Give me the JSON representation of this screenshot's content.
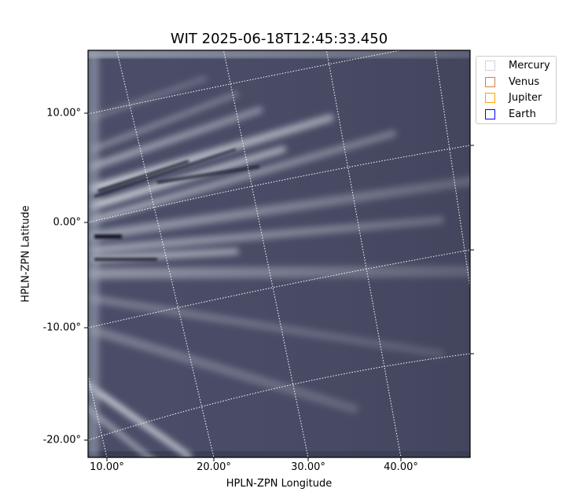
{
  "chart_data": {
    "type": "heatmap",
    "title": "WIT 2025-06-18T12:45:33.450",
    "xlabel": "HPLN-ZPN Longitude",
    "ylabel": "HPLN-ZPN Latitude",
    "xticks": [
      "10.00°",
      "20.00°",
      "30.00°",
      "40.00°"
    ],
    "yticks": [
      "10.00°",
      "0.00°",
      "-10.00°",
      "-20.00°"
    ],
    "grid": true,
    "colormap": "bone",
    "legend": {
      "placement": "outside-top-right",
      "entries": [
        {
          "name": "Mercury",
          "color": "#d3d3d3"
        },
        {
          "name": "Venus",
          "color": "#cd7f50"
        },
        {
          "name": "Jupiter",
          "color": "#ffa500"
        },
        {
          "name": "Earth",
          "color": "#0000ff"
        }
      ]
    }
  }
}
